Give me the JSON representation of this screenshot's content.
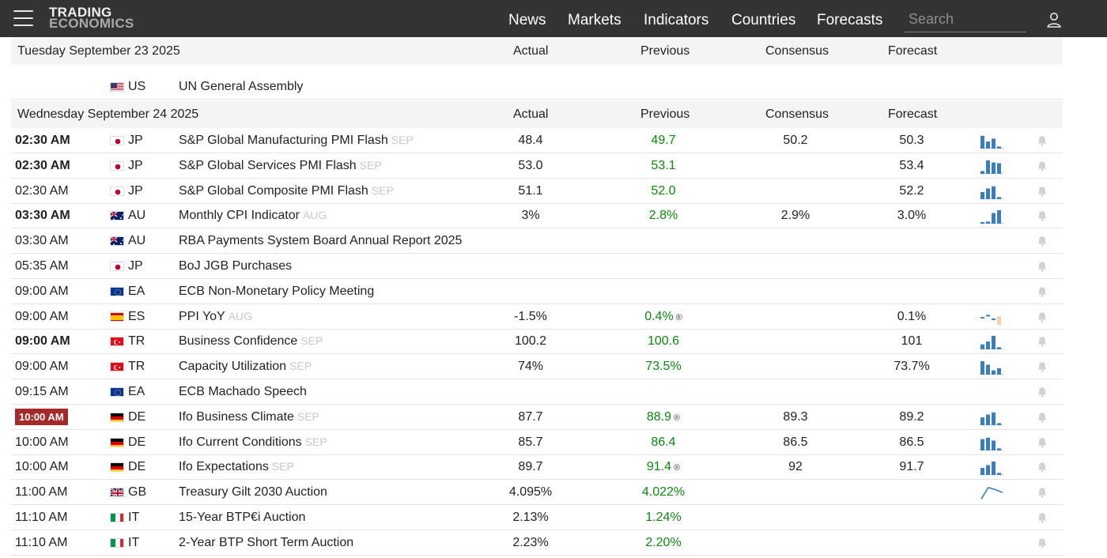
{
  "header": {
    "logo_line1": "TRADING",
    "logo_line2": "ECONOMICS",
    "nav": [
      "News",
      "Markets",
      "Indicators",
      "Countries",
      "Forecasts"
    ],
    "search_placeholder": "Search"
  },
  "columns": {
    "actual": "Actual",
    "previous": "Previous",
    "consensus": "Consensus",
    "forecast": "Forecast"
  },
  "day1": {
    "date": "Tuesday September 23 2025",
    "rows": [
      {
        "country": "US",
        "flag": "us",
        "event": "UN General Assembly"
      }
    ]
  },
  "day2": {
    "date": "Wednesday September 24 2025",
    "rows": [
      {
        "time": "02:30 AM",
        "bold": true,
        "flag": "jp",
        "country": "JP",
        "event": "S&P Global Manufacturing PMI Flash",
        "ref": "SEP",
        "actual": "48.4",
        "previous": "49.7",
        "consensus": "50.2",
        "forecast": "50.3",
        "spark": [
          0.9,
          0.5,
          0.7,
          0.15
        ],
        "spark_style": "bars4"
      },
      {
        "time": "02:30 AM",
        "bold": true,
        "flag": "jp",
        "country": "JP",
        "event": "S&P Global Services PMI Flash",
        "ref": "SEP",
        "actual": "53.0",
        "previous": "53.1",
        "consensus": "",
        "forecast": "53.4",
        "spark": [
          0.2,
          0.95,
          0.8,
          0.75
        ],
        "spark_style": "bars4"
      },
      {
        "time": "02:30 AM",
        "bold": false,
        "flag": "jp",
        "country": "JP",
        "event": "S&P Global Composite PMI Flash",
        "ref": "SEP",
        "actual": "51.1",
        "previous": "52.0",
        "consensus": "",
        "forecast": "52.2",
        "spark": [
          0.5,
          0.75,
          0.9,
          0.15
        ],
        "spark_style": "bars4"
      },
      {
        "time": "03:30 AM",
        "bold": true,
        "flag": "au",
        "country": "AU",
        "event": "Monthly CPI Indicator",
        "ref": "AUG",
        "actual": "3%",
        "previous": "2.8%",
        "consensus": "2.9%",
        "forecast": "3.0%",
        "spark": [
          0.1,
          0.15,
          0.75,
          0.95
        ],
        "spark_style": "bars4"
      },
      {
        "time": "03:30 AM",
        "bold": false,
        "flag": "au",
        "country": "AU",
        "event": "RBA Payments System Board Annual Report 2025",
        "ref": ""
      },
      {
        "time": "05:35 AM",
        "bold": false,
        "flag": "jp",
        "country": "JP",
        "event": "BoJ JGB Purchases",
        "ref": ""
      },
      {
        "time": "09:00 AM",
        "bold": false,
        "flag": "eu",
        "country": "EA",
        "event": "ECB Non-Monetary Policy Meeting",
        "ref": ""
      },
      {
        "time": "09:00 AM",
        "bold": false,
        "flag": "es",
        "country": "ES",
        "event": "PPI YoY",
        "ref": "AUG",
        "actual": "-1.5%",
        "previous": "0.4%",
        "revised": true,
        "consensus": "",
        "forecast": "0.1%",
        "spark": [
          0.55,
          0.7,
          0.45,
          0.6
        ],
        "spark_style": "ticks"
      },
      {
        "time": "09:00 AM",
        "bold": true,
        "flag": "tr",
        "country": "TR",
        "event": "Business Confidence",
        "ref": "SEP",
        "actual": "100.2",
        "previous": "100.6",
        "consensus": "",
        "forecast": "101",
        "spark": [
          0.35,
          0.55,
          0.95,
          0.15
        ],
        "spark_style": "bars4"
      },
      {
        "time": "09:00 AM",
        "bold": false,
        "flag": "tr",
        "country": "TR",
        "event": "Capacity Utilization",
        "ref": "SEP",
        "actual": "74%",
        "previous": "73.5%",
        "consensus": "",
        "forecast": "73.7%",
        "spark": [
          0.95,
          0.7,
          0.3,
          0.45
        ],
        "spark_style": "bars4"
      },
      {
        "time": "09:15 AM",
        "bold": false,
        "flag": "eu",
        "country": "EA",
        "event": "ECB Machado Speech",
        "ref": ""
      },
      {
        "time": "10:00 AM",
        "badge": true,
        "flag": "de",
        "country": "DE",
        "event": "Ifo Business Climate",
        "ref": "SEP",
        "actual": "87.7",
        "previous": "88.9",
        "revised": true,
        "consensus": "89.3",
        "forecast": "89.2",
        "spark": [
          0.55,
          0.75,
          0.9,
          0.15
        ],
        "spark_style": "bars4"
      },
      {
        "time": "10:00 AM",
        "bold": false,
        "flag": "de",
        "country": "DE",
        "event": "Ifo Current Conditions",
        "ref": "SEP",
        "actual": "85.7",
        "previous": "86.4",
        "consensus": "86.5",
        "forecast": "86.5",
        "spark": [
          0.8,
          0.9,
          0.7,
          0.15
        ],
        "spark_style": "bars4"
      },
      {
        "time": "10:00 AM",
        "bold": false,
        "flag": "de",
        "country": "DE",
        "event": "Ifo Expectations",
        "ref": "SEP",
        "actual": "89.7",
        "previous": "91.4",
        "revised": true,
        "consensus": "92",
        "forecast": "91.7",
        "spark": [
          0.5,
          0.7,
          0.95,
          0.15
        ],
        "spark_style": "bars4"
      },
      {
        "time": "11:00 AM",
        "bold": false,
        "flag": "gb",
        "country": "GB",
        "event": "Treasury Gilt 2030 Auction",
        "ref": "",
        "actual": "4.095%",
        "previous": "4.022%",
        "consensus": "",
        "forecast": "",
        "spark": [
          0.1,
          0.9,
          0.75,
          0.55
        ],
        "spark_style": "line"
      },
      {
        "time": "11:10 AM",
        "bold": false,
        "flag": "it",
        "country": "IT",
        "event": "15-Year BTP€i Auction",
        "ref": "",
        "actual": "2.13%",
        "previous": "1.24%",
        "consensus": "",
        "forecast": ""
      },
      {
        "time": "11:10 AM",
        "bold": false,
        "flag": "it",
        "country": "IT",
        "event": "2-Year BTP Short Term Auction",
        "ref": "",
        "actual": "2.23%",
        "previous": "2.20%",
        "consensus": "",
        "forecast": ""
      }
    ]
  },
  "colors": {
    "topbar": "#333333",
    "previous_green": "#0a8a0a",
    "spark_blue": "#3b7ec0",
    "badge_red": "#a52a2a"
  }
}
